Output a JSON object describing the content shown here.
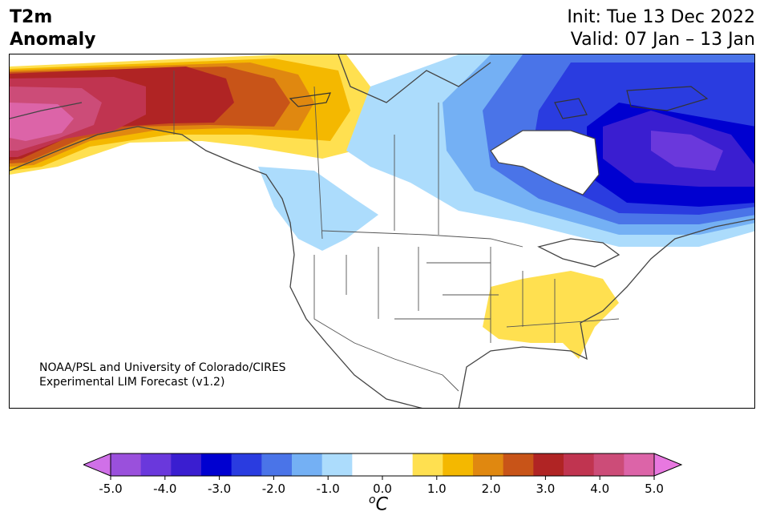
{
  "header": {
    "title_line1": "T2m",
    "title_line2": "Anomaly",
    "init": "Init: Tue 13 Dec 2022",
    "valid": "Valid: 07 Jan – 13 Jan"
  },
  "credit": {
    "line1": "NOAA/PSL and University of Colorado/CIRES",
    "line2": "Experimental LIM Forecast (v1.2)"
  },
  "colorbar": {
    "unit_sup": "o",
    "unit": "C",
    "min": -5.0,
    "max": 5.0,
    "step": 0.5,
    "ticks": [
      "-5.0",
      "-4.0",
      "-3.0",
      "-2.0",
      "-1.0",
      "0.0",
      "1.0",
      "2.0",
      "3.0",
      "4.0",
      "5.0"
    ],
    "under_color": "#d070e8",
    "over_color": "#e878e0",
    "colors": [
      "#d070e8",
      "#9a50dc",
      "#6a38dc",
      "#3a1ed0",
      "#0000d0",
      "#2a3ce0",
      "#4a74e8",
      "#74b0f4",
      "#acdcfc",
      "#ffffff",
      "#ffffff",
      "#ffe050",
      "#f4b800",
      "#e08810",
      "#c85418",
      "#b02424",
      "#c03450",
      "#cc4c78",
      "#dc64a8",
      "#e878e0"
    ]
  },
  "map": {
    "anomaly_colors": {
      "neg_1": "#acdcfc",
      "neg_1_5": "#74b0f4",
      "neg_2": "#4a74e8",
      "neg_2_5": "#2a3ce0",
      "neg_3": "#0000d0",
      "neg_3_5": "#3a1ed0",
      "neg_4": "#6a38dc",
      "pos_1": "#ffe050",
      "pos_1_5": "#f4b800",
      "pos_2": "#e08810",
      "pos_2_5": "#c85418",
      "pos_3": "#b02424",
      "pos_3_5": "#c03450",
      "pos_4": "#cc4c78",
      "pos_4_5": "#dc64a8"
    }
  }
}
